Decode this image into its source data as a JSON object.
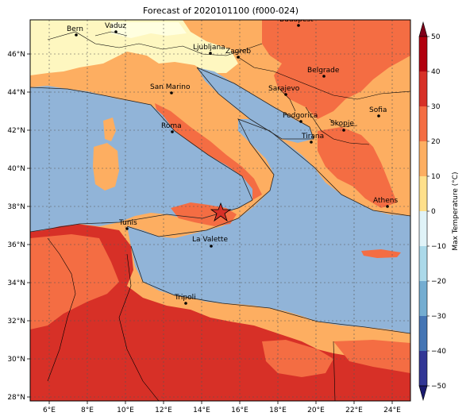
{
  "title": "Forecast of 2020101100 (f000-024)",
  "colorbar": {
    "label": "Max Temperature (°C)",
    "ticks": [
      "50",
      "40",
      "30",
      "20",
      "10",
      "0",
      "−10",
      "−20",
      "−30",
      "−40",
      "−50"
    ],
    "colors_top_to_bottom": [
      "#7f0019",
      "#b1000e",
      "#d73027",
      "#f46d43",
      "#fdae61",
      "#fee08b",
      "#ffffbf",
      "#e0f3f8",
      "#abd9e9",
      "#74add1",
      "#4575b4",
      "#313695",
      "#1a1a6e"
    ]
  },
  "axes": {
    "lon_labels": [
      "6°E",
      "8°E",
      "10°E",
      "12°E",
      "14°E",
      "16°E",
      "18°E",
      "20°E",
      "22°E",
      "24°E"
    ],
    "lat_labels": [
      "46°N",
      "44°N",
      "42°N",
      "40°N",
      "38°N",
      "36°N",
      "34°N",
      "32°N",
      "30°N",
      "28°N"
    ]
  },
  "cities": [
    {
      "name": "Bern"
    },
    {
      "name": "Vaduz"
    },
    {
      "name": "Budapest"
    },
    {
      "name": "Ljubljana"
    },
    {
      "name": "Zagreb"
    },
    {
      "name": "Belgrade"
    },
    {
      "name": "San Marino"
    },
    {
      "name": "Sarajevo"
    },
    {
      "name": "Sofia"
    },
    {
      "name": "Roma"
    },
    {
      "name": "Podgorica"
    },
    {
      "name": "Skopje"
    },
    {
      "name": "Tirana"
    },
    {
      "name": "Athens"
    },
    {
      "name": "Tunis"
    },
    {
      "name": "La Valette"
    },
    {
      "name": "Tripoli"
    }
  ],
  "colors": {
    "sea": "#91b4d8",
    "land_warm": "#f46d43",
    "land_mild": "#fdae61",
    "land_cool": "#fef7c0",
    "land_hot": "#d73027",
    "marker": "#d73027"
  }
}
